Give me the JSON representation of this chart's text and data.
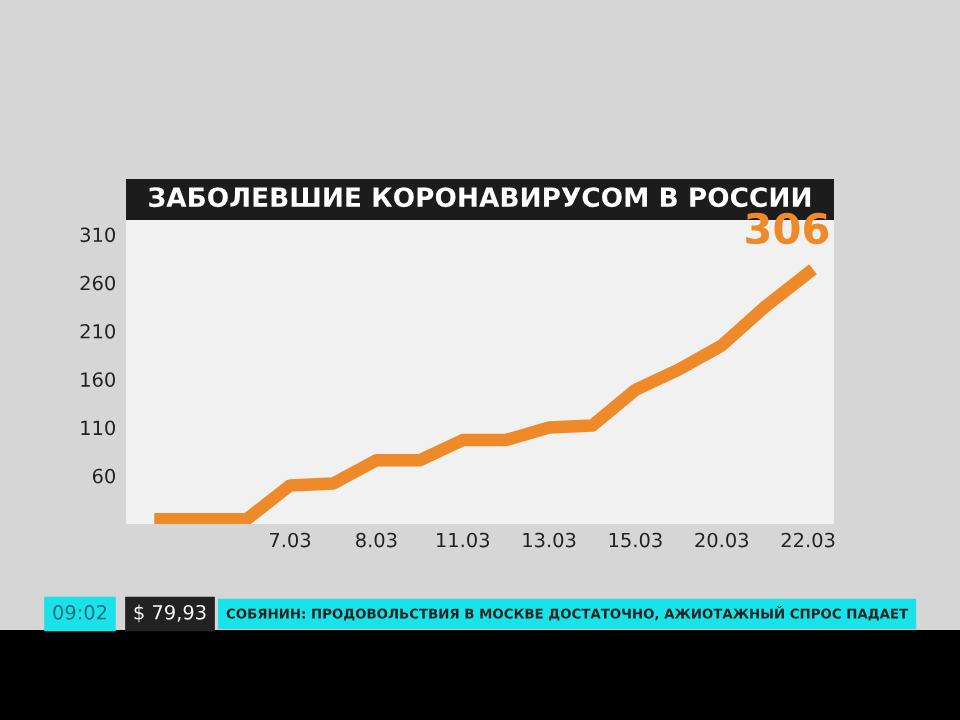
{
  "chart_data": {
    "type": "line",
    "title": "ЗАБОЛЕВШИЕ КОРОНАВИРУСОМ В РОССИИ",
    "categories": [
      null,
      null,
      null,
      "7.03",
      null,
      "8.03",
      null,
      "11.03",
      null,
      "13.03",
      null,
      "15.03",
      null,
      "20.03",
      null,
      "22.03"
    ],
    "series": [
      {
        "color": "#ee8a2a",
        "values": [
          15,
          15,
          15,
          50,
          52,
          76,
          76,
          97,
          97,
          110,
          112,
          149,
          170,
          195,
          235,
          270
        ]
      }
    ],
    "ylim": [
      10,
      325
    ],
    "yticks": [
      60,
      110,
      160,
      210,
      260,
      310
    ],
    "annotations": [
      "306",
      "09:02",
      "$ 79,93",
      "СОБЯНИН: ПРОДОВОЛЬСТВИЯ В МОСКВЕ ДОСТАТОЧНО, АЖИОТАЖНЫЙ СПРОС ПАДАЕТ"
    ],
    "grid": false,
    "legend": false,
    "marker": "none",
    "line_style": "solid"
  }
}
